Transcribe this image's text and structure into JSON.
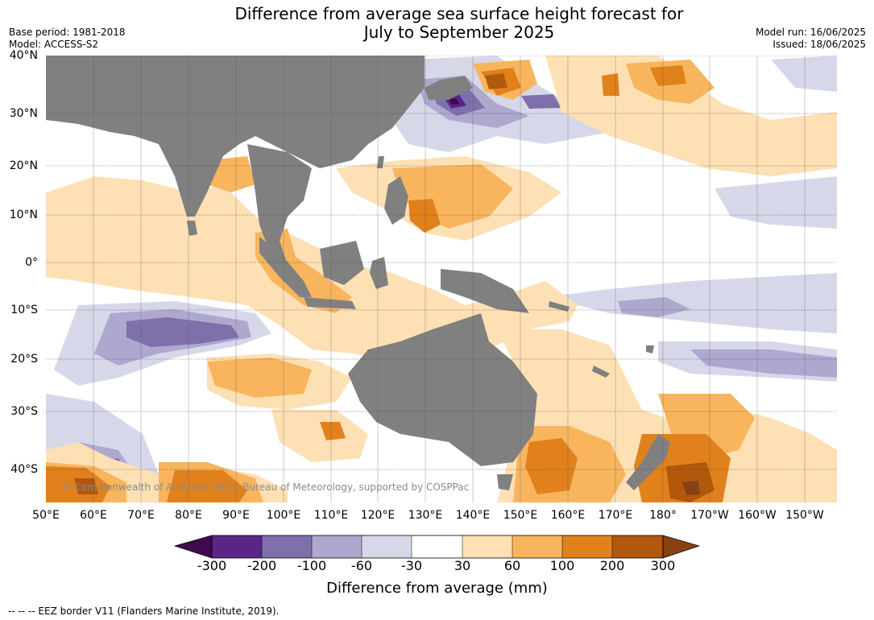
{
  "title_line1": "Difference from average sea surface height forecast for",
  "title_line2": "July to September 2025",
  "base_period": "Base period: 1981-2018",
  "model": "Model: ACCESS-S2",
  "model_run": "Model run: 16/06/2025",
  "issued": "Issued: 18/06/2025",
  "lat_labels": [
    "40°N",
    "30°N",
    "20°N",
    "10°N",
    "0°",
    "10°S",
    "20°S",
    "30°S",
    "40°S"
  ],
  "lon_labels": [
    "50°E",
    "60°E",
    "70°E",
    "80°E",
    "90°E",
    "100°E",
    "110°E",
    "120°E",
    "130°E",
    "140°E",
    "150°E",
    "160°E",
    "170°E",
    "180°",
    "170°W",
    "160°W",
    "150°W"
  ],
  "colorbar": {
    "label": "Difference from average (mm)",
    "ticks": [
      "-300",
      "-200",
      "-100",
      "-60",
      "-30",
      "30",
      "60",
      "100",
      "200",
      "300"
    ],
    "colors": [
      "#3f0a4d",
      "#5b2585",
      "#7f70ab",
      "#aea8cf",
      "#d7d7ea",
      "#ffffff",
      "#fde0b4",
      "#f8b55d",
      "#e1811c",
      "#b2580c",
      "#874014"
    ]
  },
  "copyright": "© Commonwealth of Australia 2025, Bureau of Meteorology, supported by COSPPac",
  "footnote": "--  --  -- EEZ border V11 (Flanders Marine Institute, 2019).",
  "colors": {
    "land": "#808080",
    "ocean": "#ffffff",
    "grid": "#333333"
  }
}
